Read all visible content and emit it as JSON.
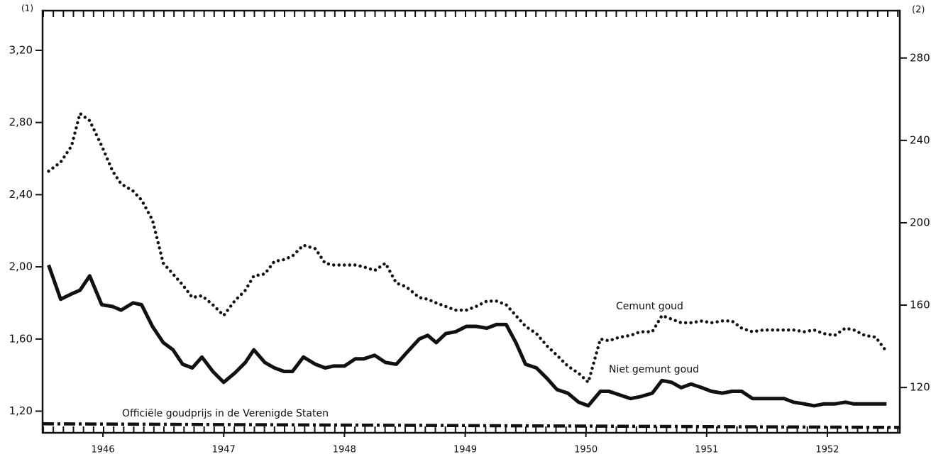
{
  "chart_data": {
    "type": "line",
    "y_label": "(1)",
    "y2_label": "(2)",
    "xlim": [
      1946,
      1953.1
    ],
    "xticks": [
      {
        "value": 1946.5,
        "label": "1946"
      },
      {
        "value": 1947.5,
        "label": "1947"
      },
      {
        "value": 1948.5,
        "label": "1948"
      },
      {
        "value": 1949.5,
        "label": "1949"
      },
      {
        "value": 1950.5,
        "label": "1950"
      },
      {
        "value": 1951.5,
        "label": "1951"
      },
      {
        "value": 1952.5,
        "label": "1952"
      }
    ],
    "ylim": [
      1.08,
      3.42
    ],
    "yticks": [
      {
        "value": 1.2,
        "label": "1,20"
      },
      {
        "value": 1.6,
        "label": "1,60"
      },
      {
        "value": 2.0,
        "label": "2,00"
      },
      {
        "value": 2.4,
        "label": "2,40"
      },
      {
        "value": 2.8,
        "label": "2,80"
      },
      {
        "value": 3.2,
        "label": "3,20"
      }
    ],
    "y2lim": [
      98,
      303
    ],
    "y2ticks": [
      120,
      160,
      200,
      240,
      280
    ],
    "x": [
      1946.05,
      1946.15,
      1946.24,
      1946.31,
      1946.39,
      1946.49,
      1946.58,
      1946.65,
      1946.75,
      1946.82,
      1946.91,
      1947.0,
      1947.08,
      1947.16,
      1947.24,
      1947.32,
      1947.41,
      1947.5,
      1947.59,
      1947.68,
      1947.75,
      1947.84,
      1947.92,
      1948.0,
      1948.07,
      1948.16,
      1948.26,
      1948.34,
      1948.41,
      1948.5,
      1948.59,
      1948.66,
      1948.75,
      1948.84,
      1948.93,
      1949.01,
      1949.12,
      1949.19,
      1949.26,
      1949.34,
      1949.42,
      1949.51,
      1949.59,
      1949.68,
      1949.76,
      1949.84,
      1949.92,
      1950.0,
      1950.09,
      1950.18,
      1950.26,
      1950.35,
      1950.44,
      1950.52,
      1950.62,
      1950.69,
      1950.78,
      1950.87,
      1950.95,
      1951.05,
      1951.13,
      1951.21,
      1951.29,
      1951.37,
      1951.46,
      1951.54,
      1951.63,
      1951.71,
      1951.79,
      1951.88,
      1951.97,
      1952.06,
      1952.14,
      1952.22,
      1952.31,
      1952.39,
      1952.47,
      1952.56,
      1952.65,
      1952.72,
      1952.81,
      1952.9,
      1952.99
    ],
    "series": [
      {
        "name": "Cemunt goud",
        "color": "#111111",
        "style": "dotted",
        "values": [
          2.53,
          2.58,
          2.67,
          2.85,
          2.81,
          2.67,
          2.53,
          2.46,
          2.42,
          2.37,
          2.26,
          2.02,
          1.96,
          1.9,
          1.83,
          1.84,
          1.79,
          1.73,
          1.81,
          1.87,
          1.95,
          1.96,
          2.03,
          2.04,
          2.06,
          2.12,
          2.1,
          2.02,
          2.01,
          2.01,
          2.01,
          2.0,
          1.98,
          2.02,
          1.91,
          1.89,
          1.83,
          1.82,
          1.8,
          1.78,
          1.76,
          1.76,
          1.78,
          1.81,
          1.81,
          1.79,
          1.73,
          1.67,
          1.63,
          1.56,
          1.51,
          1.45,
          1.41,
          1.36,
          1.6,
          1.59,
          1.61,
          1.62,
          1.64,
          1.64,
          1.73,
          1.71,
          1.69,
          1.69,
          1.7,
          1.69,
          1.7,
          1.7,
          1.66,
          1.64,
          1.65,
          1.65,
          1.65,
          1.65,
          1.64,
          1.65,
          1.63,
          1.62,
          1.66,
          1.65,
          1.62,
          1.61,
          1.53
        ]
      },
      {
        "name": "Niet gemunt goud",
        "color": "#111111",
        "style": "solid",
        "values": [
          2.01,
          1.82,
          1.85,
          1.87,
          1.95,
          1.79,
          1.78,
          1.76,
          1.8,
          1.79,
          1.67,
          1.58,
          1.54,
          1.46,
          1.44,
          1.5,
          1.42,
          1.36,
          1.41,
          1.47,
          1.54,
          1.47,
          1.44,
          1.42,
          1.42,
          1.5,
          1.46,
          1.44,
          1.45,
          1.45,
          1.49,
          1.49,
          1.51,
          1.47,
          1.46,
          1.52,
          1.6,
          1.62,
          1.58,
          1.63,
          1.64,
          1.67,
          1.67,
          1.66,
          1.68,
          1.68,
          1.58,
          1.46,
          1.44,
          1.38,
          1.32,
          1.3,
          1.25,
          1.23,
          1.31,
          1.31,
          1.29,
          1.27,
          1.28,
          1.3,
          1.37,
          1.36,
          1.33,
          1.35,
          1.33,
          1.31,
          1.3,
          1.31,
          1.31,
          1.27,
          1.27,
          1.27,
          1.27,
          1.25,
          1.24,
          1.23,
          1.24,
          1.24,
          1.25,
          1.24,
          1.24,
          1.24,
          1.24
        ]
      },
      {
        "name": "Officiële goudprijs in de Verenigde Staten",
        "color": "#111111",
        "style": "dashdot",
        "x": [
          1946.0,
          1953.1
        ],
        "values": [
          1.13,
          1.11
        ]
      }
    ]
  }
}
